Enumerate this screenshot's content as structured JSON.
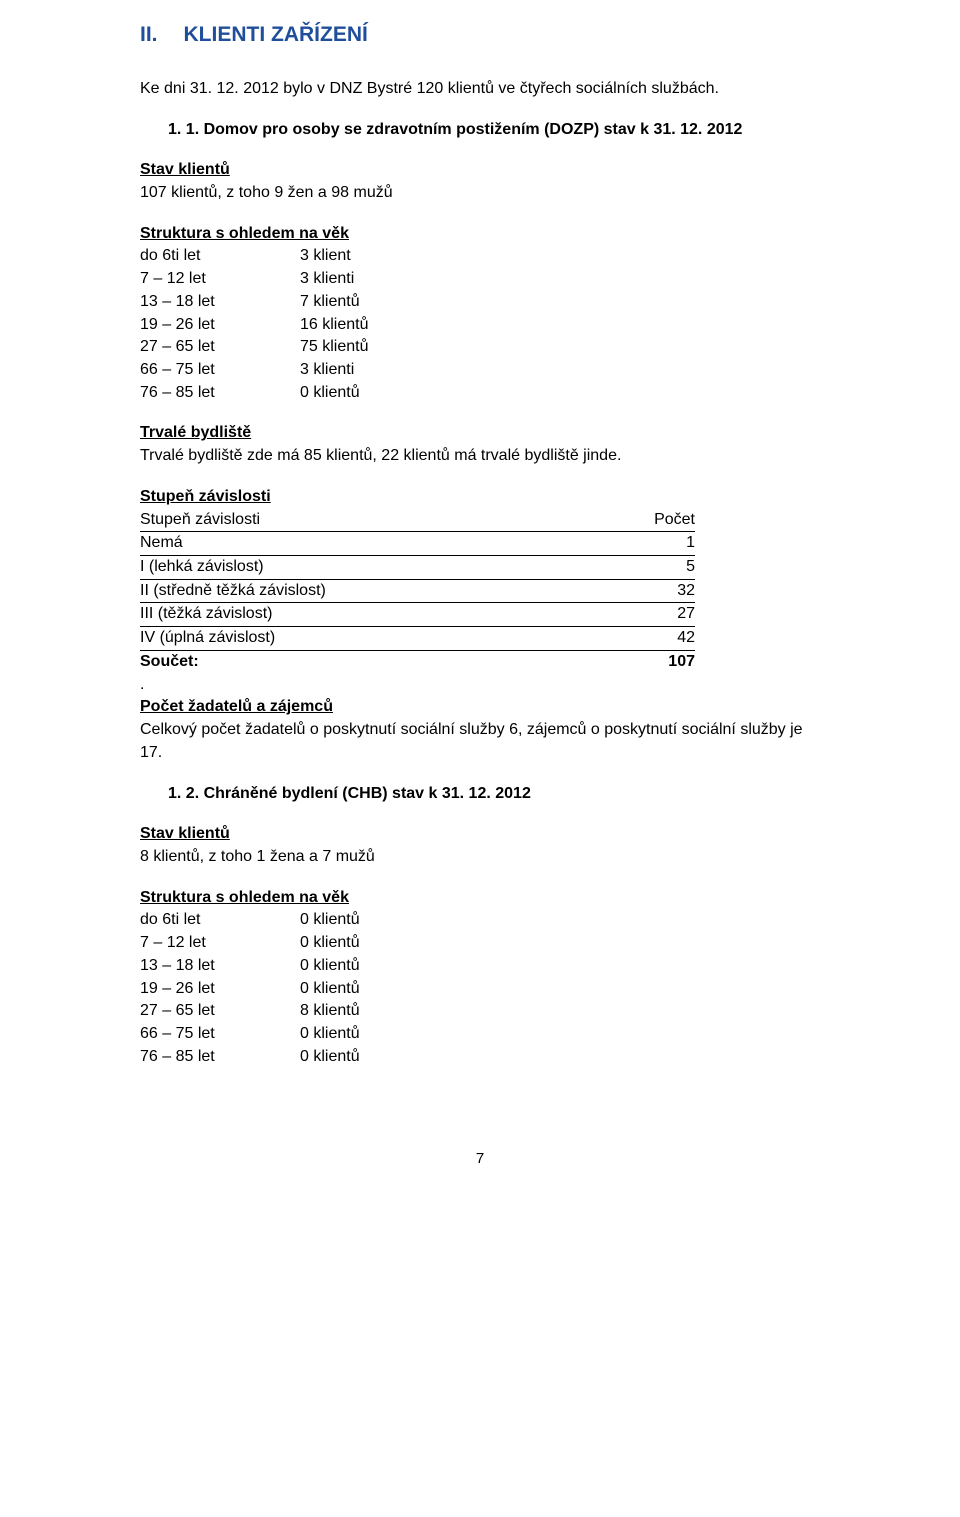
{
  "header": {
    "roman": "II.",
    "title": "KLIENTI ZAŘÍZENÍ"
  },
  "intro": "Ke dni 31. 12. 2012 bylo v DNZ Bystré 120 klientů ve čtyřech sociálních službách.",
  "section1": {
    "heading_num": "1. 1.",
    "heading_text": "Domov pro osoby se zdravotním postižením (DOZP) stav k 31. 12. 2012",
    "stav_heading": "Stav klientů",
    "stav_text": "107 klientů, z toho 9 žen a 98 mužů",
    "struct_heading": "Struktura s ohledem na věk",
    "age_rows": [
      {
        "k": " do 6ti let",
        "v": "3 klient"
      },
      {
        "k": "7 – 12 let",
        "v": "3 klienti"
      },
      {
        "k": "13 – 18 let",
        "v": "7 klientů"
      },
      {
        "k": "19 – 26 let",
        "v": "16 klientů"
      },
      {
        "k": "27 – 65 let",
        "v": "75 klientů"
      },
      {
        "k": "66 – 75 let",
        "v": "3 klienti"
      },
      {
        "k": "76 – 85 let",
        "v": "0 klientů"
      }
    ],
    "trvale_heading": "Trvalé bydliště",
    "trvale_text": "Trvalé bydliště zde má 85 klientů, 22 klientů má trvalé bydliště jinde.",
    "dep_heading": "Stupeň závislosti",
    "dep_col_label": "Stupeň závislosti",
    "dep_col_count": "Počet",
    "dep_rows": [
      {
        "label": "Nemá",
        "n": "1"
      },
      {
        "label": "I (lehká závislost)",
        "n": "5"
      },
      {
        "label": "II (středně těžká závislost)",
        "n": "32"
      },
      {
        "label": "III (těžká závislost)",
        "n": "27"
      },
      {
        "label": "IV (úplná závislost)",
        "n": "42"
      }
    ],
    "dep_sum_label": "Součet:",
    "dep_sum_value": "107",
    "dot": ".",
    "zadatel_heading": "Počet žadatelů a zájemců",
    "zadatel_text": "Celkový počet žadatelů o poskytnutí sociální služby 6, zájemců o poskytnutí sociální služby je 17."
  },
  "section2": {
    "heading_num": "1. 2.",
    "heading_text": "Chráněné bydlení (CHB) stav k 31. 12. 2012",
    "stav_heading": "Stav klientů",
    "stav_text": "8 klientů, z toho 1 žena a 7 mužů",
    "struct_heading": "Struktura s ohledem na věk",
    "age_rows": [
      {
        "k": " do 6ti let",
        "v": "0 klientů"
      },
      {
        "k": "7 – 12 let",
        "v": "0 klientů"
      },
      {
        "k": "13 – 18 let",
        "v": "0 klientů"
      },
      {
        "k": "19 – 26 let",
        "v": "0 klientů"
      },
      {
        "k": "27 – 65 let",
        "v": "8 klientů"
      },
      {
        "k": "66 – 75 let",
        "v": "0 klientů"
      },
      {
        "k": "76 – 85 let",
        "v": "0 klientů"
      }
    ]
  },
  "page_number": "7"
}
